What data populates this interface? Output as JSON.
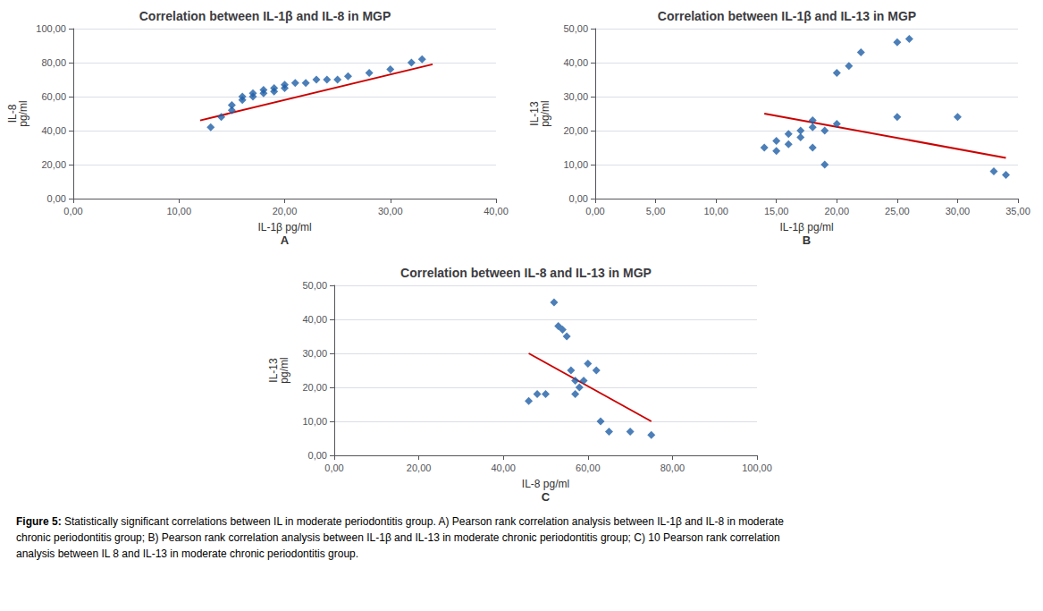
{
  "chart_data": [
    {
      "type": "scatter",
      "title": "Correlation between IL-1β and IL-8 in MGP",
      "xlabel": "IL-1β pg/ml",
      "ylabel": "IL-8\npg/ml",
      "annotation": "A",
      "xlim": [
        0,
        40
      ],
      "ylim": [
        0,
        100
      ],
      "xticks": [
        {
          "value": 0,
          "label": "0,00"
        },
        {
          "value": 10,
          "label": "10,00"
        },
        {
          "value": 20,
          "label": "20,00"
        },
        {
          "value": 30,
          "label": "30,00"
        },
        {
          "value": 40,
          "label": "40,00"
        }
      ],
      "yticks": [
        {
          "value": 0,
          "label": "0,00"
        },
        {
          "value": 20,
          "label": "20,00"
        },
        {
          "value": 40,
          "label": "40,00"
        },
        {
          "value": 60,
          "label": "60,00"
        },
        {
          "value": 80,
          "label": "80,00"
        },
        {
          "value": 100,
          "label": "100,00"
        }
      ],
      "grid": "y",
      "series": [
        {
          "type": "scatter",
          "color": "#1f5fa6",
          "marker": "diamond",
          "x": [
            13,
            14,
            15,
            15,
            16,
            16,
            17,
            17,
            18,
            18,
            19,
            19,
            20,
            20,
            21,
            22,
            23,
            24,
            25,
            26,
            28,
            30,
            32,
            33
          ],
          "values": [
            42,
            48,
            52,
            55,
            58,
            60,
            60,
            62,
            62,
            64,
            63,
            65,
            65,
            67,
            68,
            68,
            70,
            70,
            70,
            72,
            74,
            76,
            80,
            82
          ]
        },
        {
          "type": "line",
          "color": "#cc0000",
          "x": [
            12,
            34
          ],
          "values": [
            46,
            79
          ]
        }
      ]
    },
    {
      "type": "scatter",
      "title": "Correlation between IL-1β and IL-13 in MGP",
      "xlabel": "IL-1β pg/ml",
      "ylabel": "IL-13\npg/ml",
      "annotation": "B",
      "xlim": [
        0,
        35
      ],
      "ylim": [
        0,
        50
      ],
      "xticks": [
        {
          "value": 0,
          "label": "0,00"
        },
        {
          "value": 5,
          "label": "5,00"
        },
        {
          "value": 10,
          "label": "10,00"
        },
        {
          "value": 15,
          "label": "15,00"
        },
        {
          "value": 20,
          "label": "20,00"
        },
        {
          "value": 25,
          "label": "25,00"
        },
        {
          "value": 30,
          "label": "30,00"
        },
        {
          "value": 35,
          "label": "35,00"
        }
      ],
      "yticks": [
        {
          "value": 0,
          "label": "0,00"
        },
        {
          "value": 10,
          "label": "10,00"
        },
        {
          "value": 20,
          "label": "20,00"
        },
        {
          "value": 30,
          "label": "30,00"
        },
        {
          "value": 40,
          "label": "40,00"
        },
        {
          "value": 50,
          "label": "50,00"
        }
      ],
      "grid": "y",
      "series": [
        {
          "type": "scatter",
          "color": "#1f5fa6",
          "marker": "diamond",
          "x": [
            14,
            15,
            15,
            16,
            16,
            17,
            17,
            18,
            18,
            18,
            19,
            19,
            20,
            20,
            21,
            22,
            25,
            25,
            26,
            30,
            33,
            34
          ],
          "values": [
            15,
            14,
            17,
            16,
            19,
            18,
            20,
            15,
            21,
            23,
            10,
            20,
            22,
            37,
            39,
            43,
            24,
            46,
            47,
            24,
            8,
            7
          ]
        },
        {
          "type": "line",
          "color": "#cc0000",
          "x": [
            14,
            34
          ],
          "values": [
            25,
            12
          ]
        }
      ]
    },
    {
      "type": "scatter",
      "title": "Correlation between IL-8 and IL-13 in MGP",
      "xlabel": "IL-8 pg/ml",
      "ylabel": "IL-13\npg/ml",
      "annotation": "C",
      "xlim": [
        0,
        100
      ],
      "ylim": [
        0,
        50
      ],
      "xticks": [
        {
          "value": 0,
          "label": "0,00"
        },
        {
          "value": 20,
          "label": "20,00"
        },
        {
          "value": 40,
          "label": "40,00"
        },
        {
          "value": 60,
          "label": "60,00"
        },
        {
          "value": 80,
          "label": "80,00"
        },
        {
          "value": 100,
          "label": "100,00"
        }
      ],
      "yticks": [
        {
          "value": 0,
          "label": "0,00"
        },
        {
          "value": 10,
          "label": "10,00"
        },
        {
          "value": 20,
          "label": "20,00"
        },
        {
          "value": 30,
          "label": "30,00"
        },
        {
          "value": 40,
          "label": "40,00"
        },
        {
          "value": 50,
          "label": "50,00"
        }
      ],
      "grid": "y",
      "series": [
        {
          "type": "scatter",
          "color": "#1f5fa6",
          "marker": "diamond",
          "x": [
            46,
            48,
            50,
            52,
            53,
            54,
            55,
            56,
            57,
            57,
            58,
            59,
            60,
            62,
            63,
            65,
            70,
            75
          ],
          "values": [
            16,
            18,
            18,
            45,
            38,
            37,
            35,
            25,
            22,
            18,
            20,
            22,
            27,
            25,
            10,
            7,
            7,
            6
          ]
        },
        {
          "type": "line",
          "color": "#cc0000",
          "x": [
            46,
            75
          ],
          "values": [
            30,
            10
          ]
        }
      ]
    }
  ],
  "caption": "Figure 5: Statistically significant correlations between IL in moderate periodontitis group. A) Pearson rank correlation analysis between IL-1β and IL-8 in moderate chronic periodontitis group; B) Pearson rank correlation analysis between IL-1β and IL-13 in moderate chronic periodontitis group; C) 10 Pearson rank correlation analysis between IL 8 and IL-13 in moderate chronic periodontitis group."
}
